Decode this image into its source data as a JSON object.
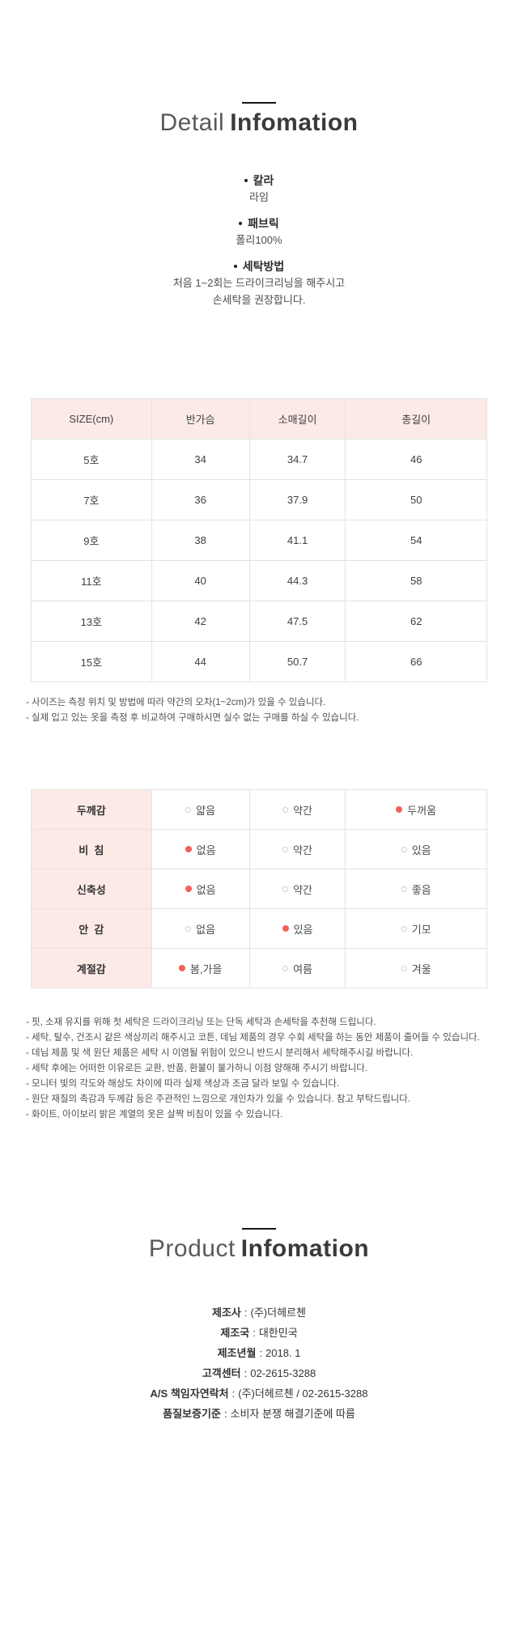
{
  "colors": {
    "header_pink": "#fceae7",
    "selected_red": "#f2605a",
    "divider_black": "#161616"
  },
  "detail_section": {
    "title_light": "Detail",
    "title_bold": "Infomation",
    "specs": [
      {
        "label": "칼라",
        "lines": [
          "라임"
        ]
      },
      {
        "label": "패브릭",
        "lines": [
          "폴리100%"
        ]
      },
      {
        "label": "세탁방법",
        "lines": [
          "처음 1~2회는 드라이크리닝을 해주시고",
          "손세탁을 권장합니다."
        ]
      }
    ]
  },
  "size_table": {
    "headers": [
      "SIZE(cm)",
      "반가슴",
      "소매길이",
      "총길이"
    ],
    "rows": [
      [
        "5호",
        "34",
        "34.7",
        "46"
      ],
      [
        "7호",
        "36",
        "37.9",
        "50"
      ],
      [
        "9호",
        "38",
        "41.1",
        "54"
      ],
      [
        "11호",
        "40",
        "44.3",
        "58"
      ],
      [
        "13호",
        "42",
        "47.5",
        "62"
      ],
      [
        "15호",
        "44",
        "50.7",
        "66"
      ]
    ],
    "notes": [
      "- 사이즈는 측정 위치 및 방법에 따라 약간의 오차(1~2cm)가 있을 수 있습니다.",
      "- 실제 입고 있는 옷을 측정 후 비교하여 구매하시면 실수 없는 구매를 하실 수 있습니다."
    ]
  },
  "feature_table": {
    "rows": [
      {
        "label": "두께감",
        "options": [
          {
            "text": "얇음",
            "selected": false
          },
          {
            "text": "약간",
            "selected": false
          },
          {
            "text": "두꺼움",
            "selected": true
          }
        ]
      },
      {
        "label": "비  침",
        "options": [
          {
            "text": "없음",
            "selected": true
          },
          {
            "text": "약간",
            "selected": false
          },
          {
            "text": "있음",
            "selected": false
          }
        ]
      },
      {
        "label": "신축성",
        "options": [
          {
            "text": "없음",
            "selected": true
          },
          {
            "text": "약간",
            "selected": false
          },
          {
            "text": "좋음",
            "selected": false
          }
        ]
      },
      {
        "label": "안  감",
        "options": [
          {
            "text": "없음",
            "selected": false
          },
          {
            "text": "있음",
            "selected": true
          },
          {
            "text": "기모",
            "selected": false
          }
        ]
      },
      {
        "label": "계절감",
        "options": [
          {
            "text": "봄,가을",
            "selected": true
          },
          {
            "text": "여름",
            "selected": false
          },
          {
            "text": "겨울",
            "selected": false
          }
        ]
      }
    ],
    "notes": [
      "- 핏, 소재 유지를 위해 첫 세탁은 드라이크리닝 또는 단독 세탁과 손세탁을 추천해 드립니다.",
      "- 세탁, 탈수, 건조시 같은 색상끼리 해주시고 코튼, 데님 제품의 경우 수회 세탁을 하는 동안 제품이 줄어들 수 있습니다.",
      "- 데님 제품 및 색 원단 제품은 세탁 시 이염될 위험이 있으니 반드시 분리해서 세탁해주시길 바랍니다.",
      "- 세탁 후에는 어떠한 이유로든 교환, 반품, 환불이 불가하니 이점 양해해 주시기 바랍니다.",
      "- 모니터 빛의 각도와 해상도 차이에 따라 실제 색상과 조금 달라 보일 수 있습니다.",
      "- 원단 재질의 촉감과 두께감 등은 주관적인 느낌으로 개인차가 있을 수 있습니다. 참고 부탁드립니다.",
      "- 화이트, 아이보리 밝은 계열의 옷은 살짝 비침이 있을 수 있습니다."
    ]
  },
  "product_section": {
    "title_light": "Product",
    "title_bold": "Infomation",
    "separator": ":",
    "items": [
      {
        "label": "제조사",
        "value": "(주)더헤르첸"
      },
      {
        "label": "제조국",
        "value": "대한민국"
      },
      {
        "label": "제조년월",
        "value": "2018. 1"
      },
      {
        "label": "고객센터",
        "value": "02-2615-3288"
      },
      {
        "label": "A/S 책임자연락처",
        "value": "(주)더헤르첸 / 02-2615-3288"
      },
      {
        "label": "품질보증기준",
        "value": "소비자 분쟁 해결기준에 따름"
      }
    ]
  }
}
